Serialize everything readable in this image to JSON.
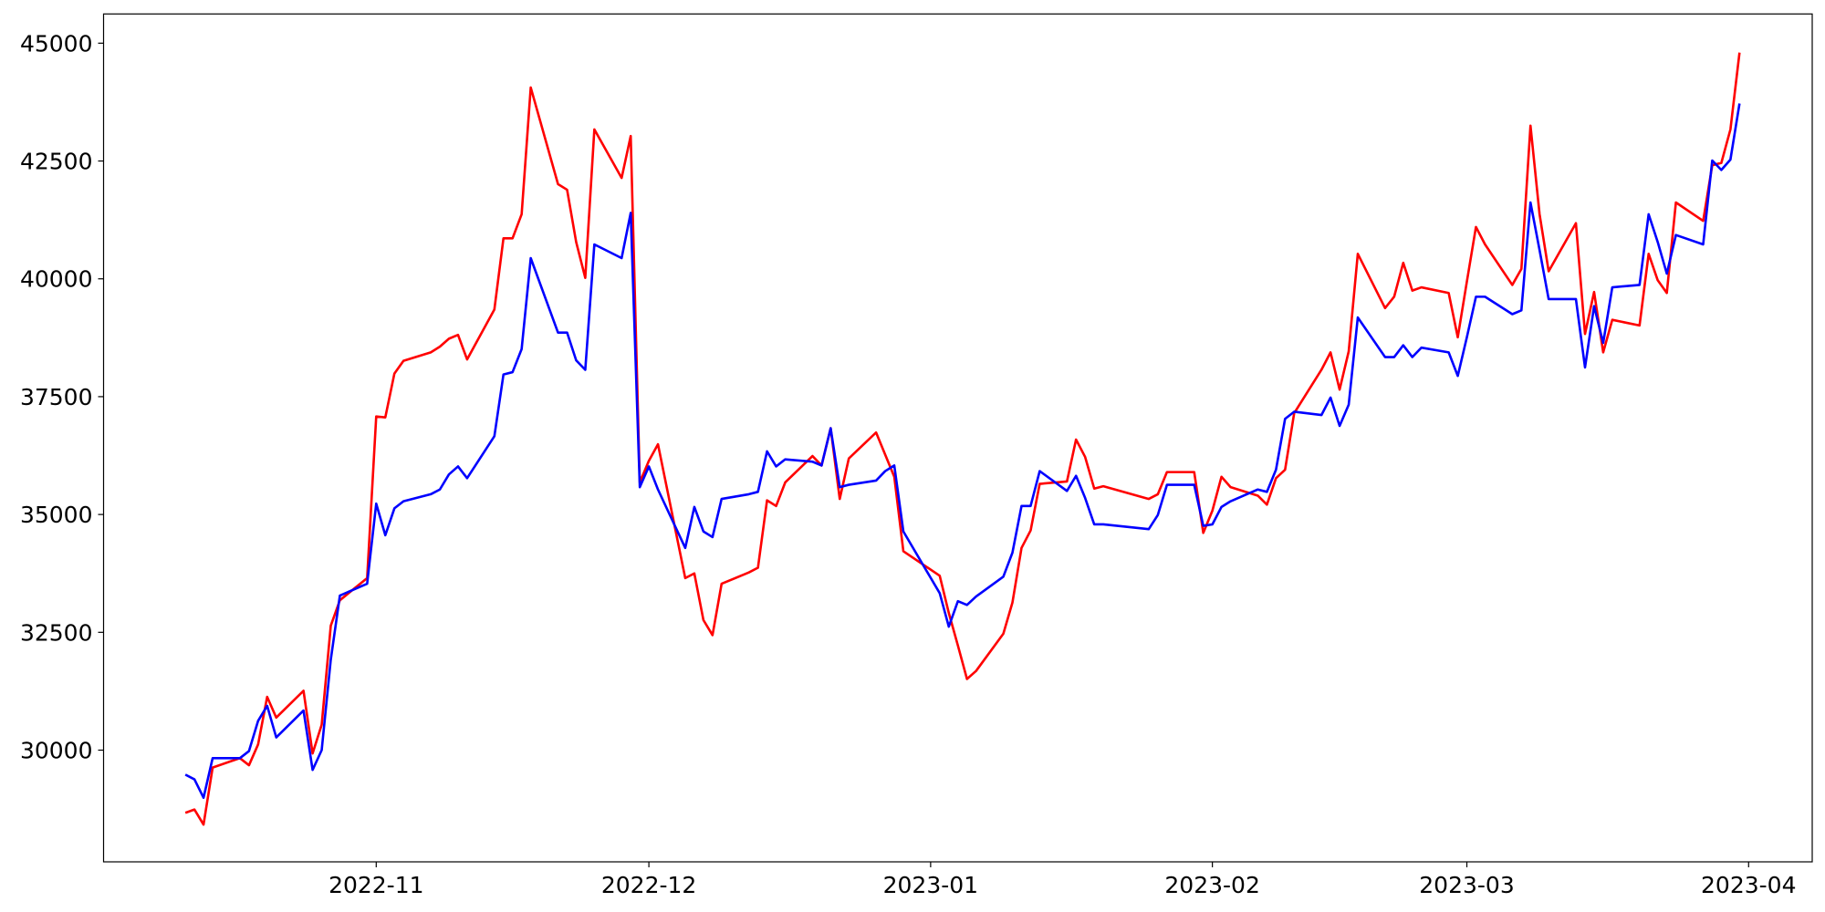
{
  "chart_data": {
    "type": "line",
    "x": [
      "2022-10-11",
      "2022-10-12",
      "2022-10-13",
      "2022-10-14",
      "2022-10-17",
      "2022-10-18",
      "2022-10-19",
      "2022-10-20",
      "2022-10-21",
      "2022-10-24",
      "2022-10-25",
      "2022-10-26",
      "2022-10-27",
      "2022-10-28",
      "2022-10-31",
      "2022-11-01",
      "2022-11-02",
      "2022-11-03",
      "2022-11-04",
      "2022-11-07",
      "2022-11-08",
      "2022-11-09",
      "2022-11-10",
      "2022-11-11",
      "2022-11-14",
      "2022-11-15",
      "2022-11-16",
      "2022-11-17",
      "2022-11-18",
      "2022-11-21",
      "2022-11-22",
      "2022-11-23",
      "2022-11-24",
      "2022-11-25",
      "2022-11-28",
      "2022-11-29",
      "2022-11-30",
      "2022-12-01",
      "2022-12-02",
      "2022-12-05",
      "2022-12-06",
      "2022-12-07",
      "2022-12-08",
      "2022-12-09",
      "2022-12-12",
      "2022-12-13",
      "2022-12-14",
      "2022-12-15",
      "2022-12-16",
      "2022-12-19",
      "2022-12-20",
      "2022-12-21",
      "2022-12-22",
      "2022-12-23",
      "2022-12-26",
      "2022-12-27",
      "2022-12-28",
      "2022-12-29",
      "2023-01-02",
      "2023-01-03",
      "2023-01-04",
      "2023-01-05",
      "2023-01-06",
      "2023-01-09",
      "2023-01-10",
      "2023-01-11",
      "2023-01-12",
      "2023-01-13",
      "2023-01-16",
      "2023-01-17",
      "2023-01-18",
      "2023-01-19",
      "2023-01-20",
      "2023-01-25",
      "2023-01-26",
      "2023-01-27",
      "2023-01-30",
      "2023-01-31",
      "2023-02-01",
      "2023-02-02",
      "2023-02-03",
      "2023-02-06",
      "2023-02-07",
      "2023-02-08",
      "2023-02-09",
      "2023-02-10",
      "2023-02-13",
      "2023-02-14",
      "2023-02-15",
      "2023-02-16",
      "2023-02-17",
      "2023-02-20",
      "2023-02-21",
      "2023-02-22",
      "2023-02-23",
      "2023-02-24",
      "2023-02-27",
      "2023-02-28",
      "2023-03-01",
      "2023-03-02",
      "2023-03-03",
      "2023-03-06",
      "2023-03-07",
      "2023-03-08",
      "2023-03-09",
      "2023-03-10",
      "2023-03-13",
      "2023-03-14",
      "2023-03-15",
      "2023-03-16",
      "2023-03-17",
      "2023-03-20",
      "2023-03-21",
      "2023-03-22",
      "2023-03-23",
      "2023-03-24",
      "2023-03-27",
      "2023-03-28",
      "2023-03-29",
      "2023-03-30",
      "2023-03-31"
    ],
    "series": [
      {
        "color": "#ff0000",
        "values": [
          28670,
          28740,
          28420,
          29630,
          29830,
          29680,
          30120,
          31130,
          30690,
          31260,
          29930,
          30540,
          32640,
          33180,
          33650,
          37080,
          37060,
          37990,
          38260,
          38440,
          38560,
          38730,
          38810,
          38290,
          39350,
          40860,
          40860,
          41370,
          44060,
          42010,
          41890,
          40780,
          40020,
          43170,
          42140,
          43030,
          35680,
          36140,
          36490,
          33650,
          33750,
          32760,
          32440,
          33530,
          33770,
          33870,
          35300,
          35180,
          35680,
          36240,
          36040,
          36830,
          35330,
          36190,
          36740,
          36270,
          35800,
          34220,
          33700,
          32910,
          32220,
          31510,
          31680,
          32470,
          33130,
          34290,
          34660,
          35650,
          35700,
          36590,
          36220,
          35550,
          35600,
          35330,
          35430,
          35900,
          35900,
          34610,
          35080,
          35800,
          35580,
          35400,
          35210,
          35770,
          35950,
          37150,
          38070,
          38440,
          37650,
          38460,
          40530,
          39380,
          39620,
          40340,
          39750,
          39820,
          39700,
          38760,
          39940,
          41100,
          40730,
          39870,
          40210,
          43250,
          41370,
          40160,
          41180,
          38830,
          39720,
          38440,
          39130,
          39010,
          40530,
          39970,
          39700,
          41620,
          41230,
          42410,
          42460,
          43170,
          44800
        ]
      },
      {
        "color": "#0000ff",
        "values": [
          29480,
          29380,
          28990,
          29830,
          29830,
          29980,
          30620,
          30940,
          30270,
          30840,
          29580,
          30000,
          31920,
          33280,
          33530,
          35230,
          34560,
          35130,
          35280,
          35430,
          35530,
          35850,
          36020,
          35770,
          36660,
          37970,
          38020,
          38510,
          40440,
          38860,
          38860,
          38270,
          38070,
          40730,
          40440,
          41400,
          35580,
          36020,
          35530,
          34290,
          35160,
          34640,
          34520,
          35330,
          35430,
          35480,
          36340,
          36020,
          36170,
          36120,
          36040,
          36830,
          35580,
          35630,
          35720,
          35920,
          36040,
          34640,
          33330,
          32620,
          33160,
          33080,
          33260,
          33680,
          34190,
          35180,
          35180,
          35920,
          35500,
          35820,
          35350,
          34790,
          34790,
          34690,
          34990,
          35630,
          35630,
          34760,
          34790,
          35160,
          35280,
          35530,
          35480,
          35950,
          37030,
          37180,
          37110,
          37480,
          36880,
          37330,
          39180,
          38340,
          38340,
          38590,
          38340,
          38540,
          38440,
          37940,
          38760,
          39620,
          39620,
          39250,
          39330,
          41620,
          40610,
          39570,
          39570,
          38120,
          39420,
          38640,
          39820,
          39870,
          41370,
          40780,
          40110,
          40930,
          40730,
          42510,
          42310,
          42530,
          43720
        ]
      }
    ],
    "xlim": [
      "2022-10-02",
      "2023-04-08"
    ],
    "xticks": [
      "2022-11",
      "2022-12",
      "2023-01",
      "2023-02",
      "2023-03",
      "2023-04"
    ],
    "ylim": [
      27630,
      45620
    ],
    "yticks": [
      30000,
      32500,
      35000,
      37500,
      40000,
      42500,
      45000
    ],
    "grid": false
  }
}
